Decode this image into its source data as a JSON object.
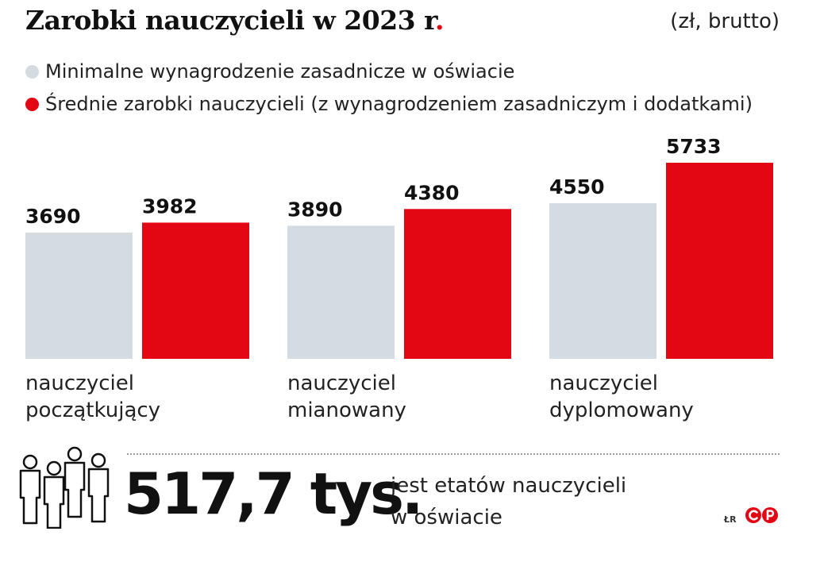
{
  "header": {
    "title": "Zarobki nauczycieli w 2023 r",
    "title_dot": ".",
    "units": "(zł, brutto)"
  },
  "legend": [
    {
      "label": "Minimalne wynagrodzenie zasadnicze w oświacie",
      "color": "#d5dce1"
    },
    {
      "label": "Średnie zarobki nauczycieli (z wynagrodzeniem zasadniczym i dodatkami)",
      "color": "#e30613"
    }
  ],
  "chart_data": {
    "type": "bar",
    "categories": [
      [
        "nauczyciel",
        "początkujący"
      ],
      [
        "nauczyciel",
        "mianowany"
      ],
      [
        "nauczyciel",
        "dyplomowany"
      ]
    ],
    "series": [
      {
        "name": "Minimalne wynagrodzenie zasadnicze w oświacie",
        "values": [
          3690,
          3890,
          4550
        ],
        "color": "#d5dce1"
      },
      {
        "name": "Średnie zarobki nauczycieli (z wynagrodzeniem zasadniczym i dodatkami)",
        "values": [
          3982,
          4380,
          5733
        ],
        "color": "#e30613"
      }
    ],
    "title": "Zarobki nauczycieli w 2023 r.",
    "units": "(zł, brutto)",
    "ylim": [
      0,
      5733
    ],
    "grid": false,
    "legend_position": "top-left"
  },
  "stat": {
    "value": "517,7 tys.",
    "description_line1": "jest etatów nauczycieli",
    "description_line2": "w oświacie"
  },
  "footer": {
    "credit": "ŁR"
  }
}
